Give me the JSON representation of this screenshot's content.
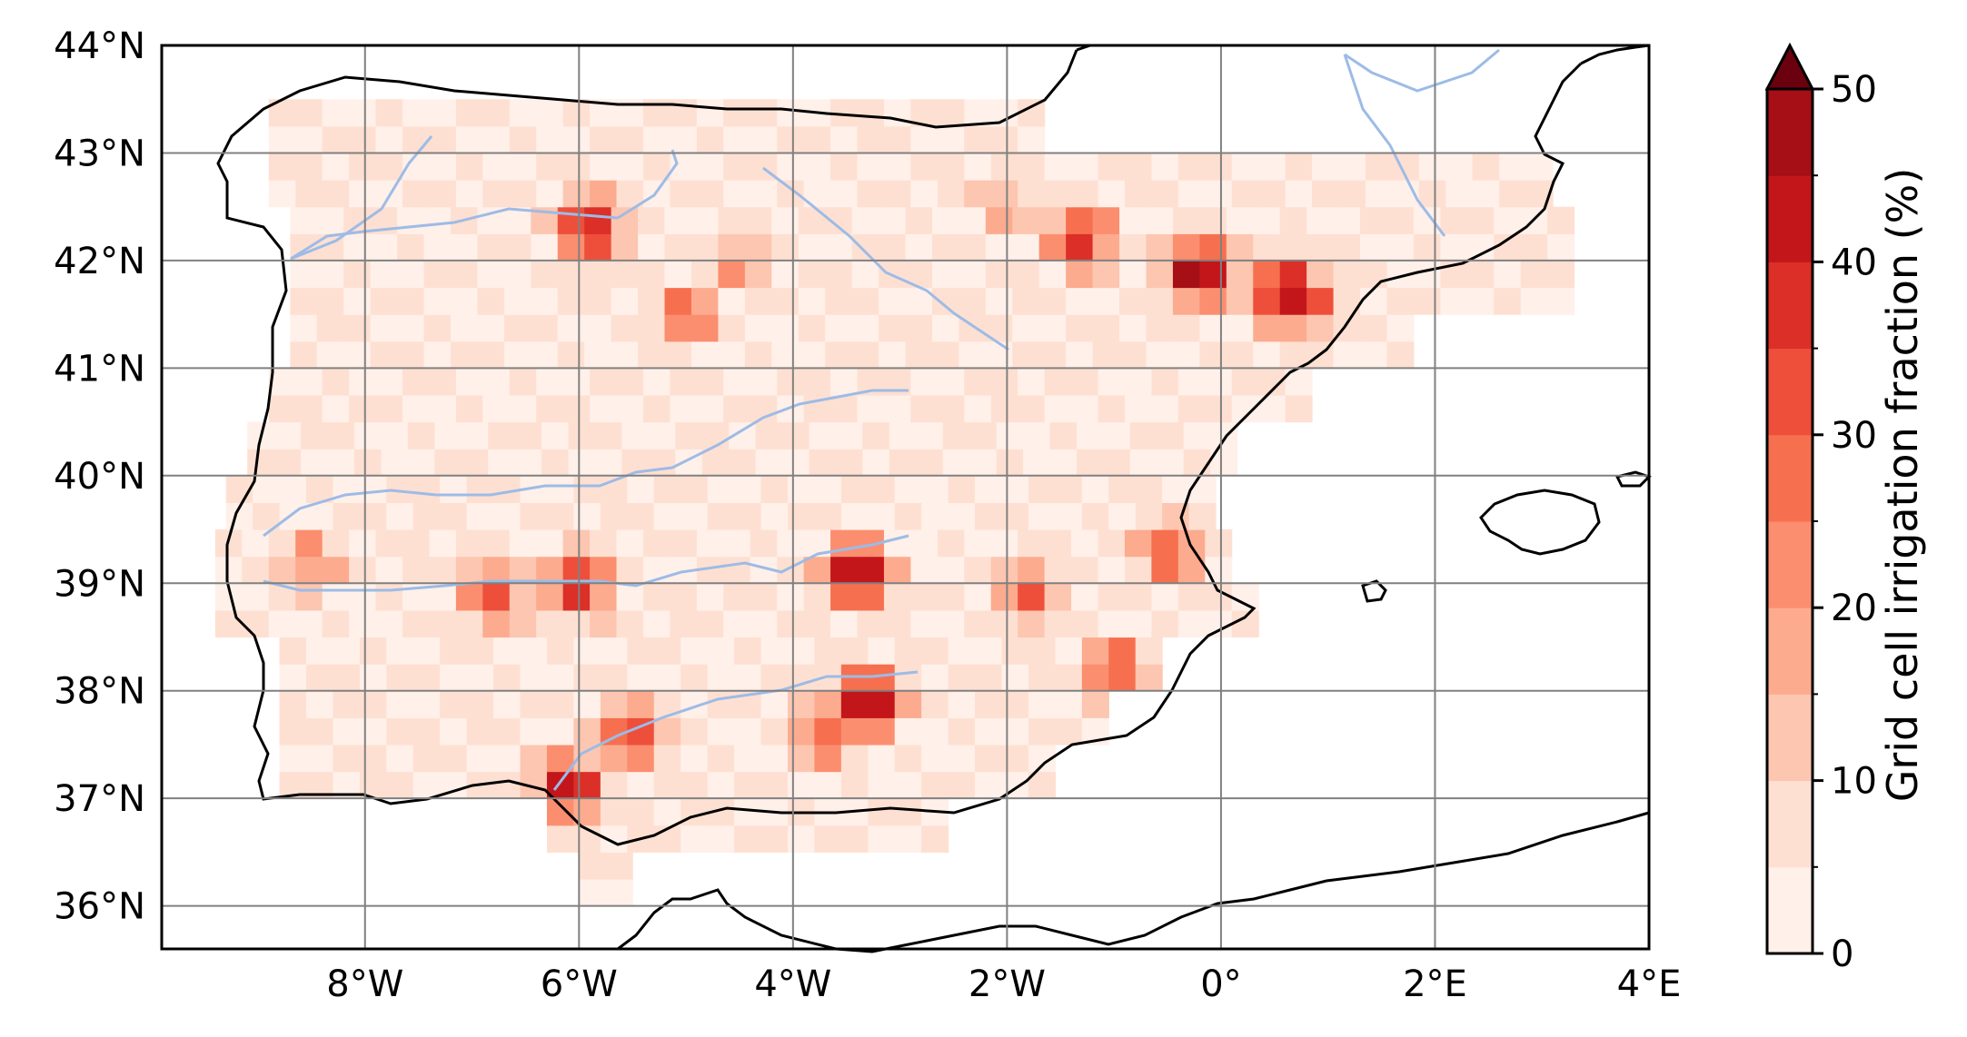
{
  "map": {
    "lat_ticks": [
      "44°N",
      "43°N",
      "42°N",
      "41°N",
      "40°N",
      "39°N",
      "38°N",
      "37°N",
      "36°N"
    ],
    "lon_ticks": [
      "8°W",
      "6°W",
      "4°W",
      "2°W",
      "0°",
      "2°E",
      "4°E"
    ],
    "extent": {
      "lon": [
        -9.9,
        4.0
      ],
      "lat": [
        35.6,
        44.0
      ]
    },
    "gridline_color": "#808080",
    "coastline_color": "#000000",
    "river_color": "#9dbbe6"
  },
  "colorbar": {
    "label": "Grid cell irrigation fraction (%)",
    "tick_labels": [
      "0",
      "10",
      "20",
      "30",
      "40",
      "50"
    ],
    "extend": "max",
    "colors": [
      "#fff0e9",
      "#fee0d2",
      "#fcc6b0",
      "#fcab8f",
      "#fb8e6f",
      "#f6704f",
      "#ee4f3b",
      "#db2f27",
      "#c3161b",
      "#a50f15",
      "#6b010e"
    ],
    "vmin": 0,
    "vmax": 50,
    "step": 5
  }
}
